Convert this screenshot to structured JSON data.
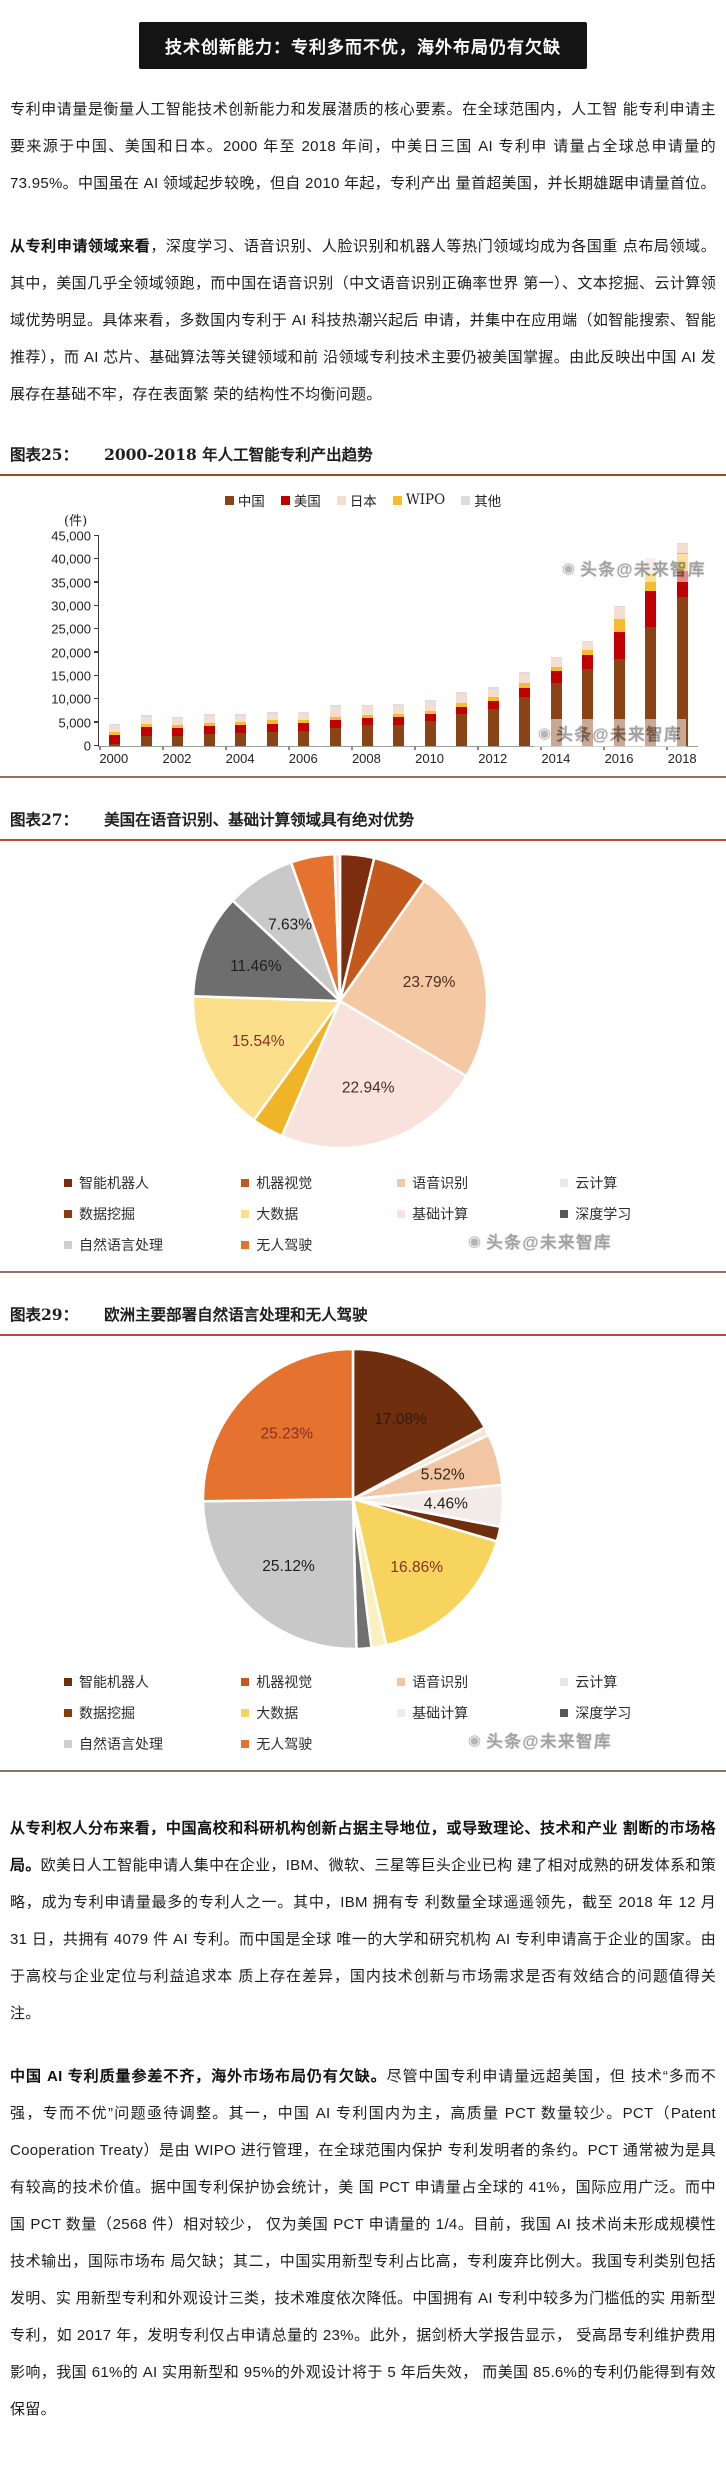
{
  "banner": {
    "title": "技术创新能力：专利多而不优，海外布局仍有欠缺"
  },
  "watermark": "头条@未来智库",
  "paragraphs": {
    "p1": "专利申请量是衡量人工智能技术创新能力和发展潜质的核心要素。在全球范围内，人工智 能专利申请主要来源于中国、美国和日本。2000 年至 2018 年间，中美日三国 AI 专利申 请量占全球总申请量的 73.95%。中国虽在 AI 领域起步较晚，但自 2010 年起，专利产出 量首超美国，并长期雄踞申请量首位。",
    "p2_bold": "从专利申请领域来看",
    "p2_rest": "，深度学习、语音识别、人脸识别和机器人等热门领域均成为各国重 点布局领域。其中，美国几乎全领域领跑，而中国在语音识别（中文语音识别正确率世界 第一）、文本挖掘、云计算领域优势明显。具体来看，多数国内专利于 AI 科技热潮兴起后 申请，并集中在应用端（如智能搜索、智能推荐），而 AI 芯片、基础算法等关键领域和前 沿领域专利技术主要仍被美国掌握。由此反映出中国 AI 发展存在基础不牢，存在表面繁 荣的结构性不均衡问题。",
    "p3_bold": "从专利权人分布来看，中国高校和科研机构创新占据主导地位，或导致理论、技术和产业 割断的市场格局。",
    "p3_rest": "欧美日人工智能申请人集中在企业，IBM、微软、三星等巨头企业已构 建了相对成熟的研发体系和策略，成为专利申请量最多的专利人之一。其中，IBM 拥有专 利数量全球遥遥领先，截至 2018 年 12 月 31 日，共拥有 4079 件 AI 专利。而中国是全球 唯一的大学和研究机构 AI 专利申请高于企业的国家。由于高校与企业定位与利益追求本 质上存在差异，国内技术创新与市场需求是否有效结合的问题值得关注。",
    "p4_bold": "中国 AI 专利质量参差不齐，海外市场布局仍有欠缺。",
    "p4_rest": "尽管中国专利申请量远超美国，但 技术“多而不强，专而不优”问题亟待调整。其一，中国 AI 专利国内为主，高质量 PCT 数量较少。PCT（Patent Cooperation Treaty）是由 WIPO 进行管理，在全球范围内保护 专利发明者的条约。PCT 通常被为是具有较高的技术价值。据中国专利保护协会统计，美 国 PCT 申请量占全球的 41%，国际应用广泛。而中国 PCT 数量（2568 件）相对较少， 仅为美国 PCT 申请量的 1/4。目前，我国 AI 技术尚未形成规模性技术输出，国际市场布 局欠缺；其二，中国实用新型专利占比高，专利废弃比例大。我国专利类别包括发明、实 用新型专利和外观设计三类，技术难度依次降低。中国拥有 AI 专利中较多为门槛低的实 用新型专利，如 2017 年，发明专利仅占申请总量的 23%。此外，据剑桥大学报告显示， 受高昂专利维护费用影响，我国 61%的 AI 实用新型和 95%的外观设计将于 5 年后失效， 而美国 85.6%的专利仍能得到有效保留。"
  },
  "chart_data": [
    {
      "type": "bar",
      "stacked": true,
      "fig_label": "图表25：",
      "title": "2000-2018 年人工智能专利产出趋势",
      "unit": "(件)",
      "ylim": [
        0,
        45000
      ],
      "ytick_labels": [
        "0",
        "5,000",
        "10,000",
        "15,000",
        "20,000",
        "25,000",
        "30,000",
        "35,000",
        "40,000",
        "45,000"
      ],
      "grid": false,
      "legend_position": "top",
      "categories": [
        2000,
        2001,
        2002,
        2003,
        2004,
        2005,
        2006,
        2007,
        2008,
        2009,
        2010,
        2011,
        2012,
        2013,
        2014,
        2015,
        2016,
        2017,
        2018
      ],
      "series": [
        {
          "name": "中国",
          "color": "#8a4315",
          "values": [
            500,
            2200,
            2100,
            2500,
            2800,
            3100,
            3300,
            3900,
            4400,
            4600,
            5400,
            6800,
            7900,
            10500,
            13500,
            16600,
            18700,
            25500,
            32000
          ]
        },
        {
          "name": "美国",
          "color": "#c00000",
          "values": [
            1800,
            1900,
            1800,
            1800,
            1700,
            1700,
            1700,
            1600,
            1700,
            1600,
            1500,
            1600,
            1700,
            2000,
            2500,
            2900,
            5700,
            7700,
            5500
          ]
        },
        {
          "name": "WIPO",
          "color": "#f5bd2b",
          "values": [
            800,
            700,
            600,
            700,
            600,
            700,
            600,
            700,
            600,
            700,
            700,
            800,
            900,
            900,
            1000,
            1100,
            2900,
            3600,
            3900
          ]
        },
        {
          "name": "日本",
          "color": "#f4ded1",
          "values": [
            1400,
            1500,
            1400,
            1500,
            1400,
            1400,
            1500,
            2200,
            1900,
            1800,
            2000,
            2000,
            1800,
            2100,
            1800,
            1800,
            2500,
            3200,
            1900
          ]
        },
        {
          "name": "其他",
          "color": "#dcdcdc",
          "values": [
            300,
            300,
            300,
            300,
            300,
            300,
            300,
            300,
            300,
            300,
            300,
            300,
            300,
            300,
            200,
            200,
            200,
            200,
            200
          ]
        }
      ],
      "legend_order": [
        "中国",
        "美国",
        "日本",
        "WIPO",
        "其他"
      ],
      "legend_colors": {
        "中国": "#8a4315",
        "美国": "#c00000",
        "日本": "#f4ded1",
        "WIPO": "#f5bd2b",
        "其他": "#dcdcdc"
      }
    },
    {
      "type": "pie",
      "fig_label": "图表27：",
      "title": "美国在语音识别、基础计算领域具有绝对优势",
      "slices": [
        {
          "name": "智能机器人",
          "value": 3.74,
          "color": "#7b2d0e"
        },
        {
          "name": "机器视觉",
          "value": 6.0,
          "color": "#c3591c"
        },
        {
          "name": "语音识别",
          "value": 23.79,
          "color": "#f4c8a3",
          "label": "23.79%",
          "label_color": "#4a2e22"
        },
        {
          "name": "基础计算",
          "value": 22.94,
          "color": "#f8e2db",
          "label": "22.94%",
          "label_color": "#433028"
        },
        {
          "name": "数据挖掘",
          "value": 3.5,
          "color": "#efb428"
        },
        {
          "name": "大数据",
          "value": 15.54,
          "color": "#fbdf8a",
          "label": "15.54%",
          "label_color": "#8b2f1f"
        },
        {
          "name": "深度学习",
          "value": 11.46,
          "color": "#6e6e6e",
          "label": "11.46%",
          "label_color": "#1f1f1f"
        },
        {
          "name": "自然语言处理",
          "value": 7.63,
          "color": "#c9c9c9",
          "label": "7.63%",
          "label_color": "#1f1f1f"
        },
        {
          "name": "无人驾驶",
          "value": 4.8,
          "color": "#e5732f"
        },
        {
          "name": "云计算",
          "value": 0.6,
          "color": "#f6dcd2"
        }
      ],
      "legend": [
        {
          "name": "智能机器人",
          "color": "#7b2d0e"
        },
        {
          "name": "机器视觉",
          "color": "#c3591c"
        },
        {
          "name": "语音识别",
          "color": "#f4c8a3"
        },
        {
          "name": "云计算",
          "color": "#ece7e1"
        },
        {
          "name": "数据挖掘",
          "color": "#8c3a10"
        },
        {
          "name": "大数据",
          "color": "#fbdf8a"
        },
        {
          "name": "基础计算",
          "color": "#f8e2db"
        },
        {
          "name": "深度学习",
          "color": "#595959"
        },
        {
          "name": "自然语言处理",
          "color": "#cfcfcf"
        },
        {
          "name": "无人驾驶",
          "color": "#e5732f"
        }
      ]
    },
    {
      "type": "pie",
      "fig_label": "图表29：",
      "title": "欧洲主要部署自然语言处理和无人驾驶",
      "slices": [
        {
          "name": "智能机器人",
          "value": 17.08,
          "color": "#6f2f0e",
          "label": "17.08%",
          "label_color": "#2b1c12"
        },
        {
          "name": "机器视觉",
          "value": 0.9,
          "color": "#f7e3d5"
        },
        {
          "name": "语音识别",
          "value": 5.52,
          "color": "#f2c6a2",
          "label": "5.52%",
          "label_color": "#33251f"
        },
        {
          "name": "基础计算",
          "value": 4.46,
          "color": "#f2ebe7",
          "label": "4.46%",
          "label_color": "#1f1f1f"
        },
        {
          "name": "数据挖掘",
          "value": 1.6,
          "color": "#6f2f0e"
        },
        {
          "name": "大数据",
          "value": 16.86,
          "color": "#f6d45e",
          "label": "16.86%",
          "label_color": "#8b2f1f"
        },
        {
          "name": "云计算",
          "value": 1.6,
          "color": "#fbf0c0"
        },
        {
          "name": "深度学习",
          "value": 1.6,
          "color": "#707070"
        },
        {
          "name": "自然语言处理",
          "value": 25.12,
          "color": "#c8c8c8",
          "label": "25.12%",
          "label_color": "#1f1f1f"
        },
        {
          "name": "无人驾驶",
          "value": 25.23,
          "color": "#e5732f",
          "label": "25.23%",
          "label_color": "#8b2f1f"
        }
      ],
      "legend": [
        {
          "name": "智能机器人",
          "color": "#6f2f0e"
        },
        {
          "name": "机器视觉",
          "color": "#c3591c"
        },
        {
          "name": "语音识别",
          "color": "#f2c6a2"
        },
        {
          "name": "云计算",
          "color": "#ece7e1"
        },
        {
          "name": "数据挖掘",
          "color": "#8c3a10"
        },
        {
          "name": "大数据",
          "color": "#f6d45e"
        },
        {
          "name": "基础计算",
          "color": "#f2ebe7"
        },
        {
          "name": "深度学习",
          "color": "#595959"
        },
        {
          "name": "自然语言处理",
          "color": "#cfcfcf"
        },
        {
          "name": "无人驾驶",
          "color": "#e5732f"
        }
      ]
    }
  ]
}
